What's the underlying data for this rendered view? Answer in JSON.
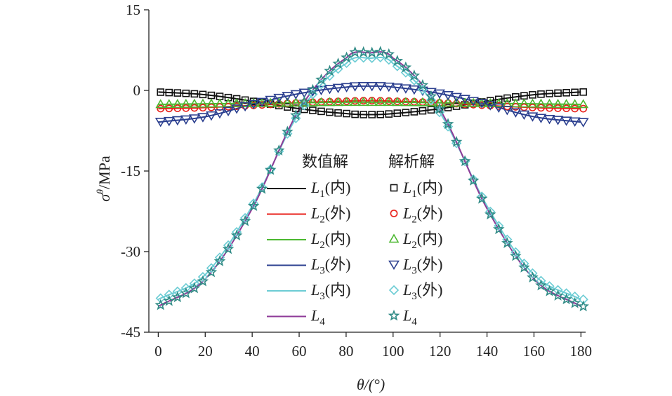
{
  "chart_data": {
    "type": "line",
    "title": "",
    "xlabel": "θ/(°)",
    "ylabel": "σ^θ/MPa",
    "xlim": [
      -4,
      182
    ],
    "ylim": [
      -45,
      15
    ],
    "xticks": [
      0,
      20,
      40,
      60,
      80,
      100,
      120,
      140,
      160,
      180
    ],
    "yticks": [
      15,
      0,
      -15,
      -30,
      -45
    ],
    "ytick_labels": [
      "15",
      "0",
      "-15",
      "-30",
      "-45"
    ],
    "grid": false,
    "legend_placement": "center",
    "legend_headers": {
      "numerical": "数值解",
      "analytical": "解析解"
    },
    "x": [
      0,
      20,
      40,
      60,
      80,
      90,
      100,
      120,
      140,
      160,
      180
    ],
    "series": [
      {
        "name": "L1(内)",
        "base": "L",
        "sub": "1",
        "suffix": "(内)",
        "color": "#111111",
        "marker": "square",
        "values": [
          -0.3,
          -0.8,
          -2.0,
          -3.4,
          -4.3,
          -4.5,
          -4.3,
          -3.4,
          -2.0,
          -0.8,
          -0.3
        ]
      },
      {
        "name": "L2(外)",
        "base": "L",
        "sub": "2",
        "suffix": "(外)",
        "color": "#e8211b",
        "marker": "circle",
        "values": [
          -3.4,
          -3.2,
          -2.8,
          -2.3,
          -2.0,
          -1.9,
          -2.0,
          -2.3,
          -2.8,
          -3.2,
          -3.4
        ]
      },
      {
        "name": "L2(内)",
        "base": "L",
        "sub": "2",
        "suffix": "(内)",
        "color": "#4cb830",
        "marker": "triangle-up",
        "values": [
          -2.6,
          -2.5,
          -2.4,
          -2.3,
          -2.2,
          -2.2,
          -2.2,
          -2.3,
          -2.4,
          -2.5,
          -2.6
        ]
      },
      {
        "name": "L3(外)",
        "base": "L",
        "sub": "3",
        "suffix": "(外)",
        "color": "#2b3f8f",
        "marker": "triangle-down",
        "values": [
          -5.9,
          -4.9,
          -2.6,
          -0.6,
          0.6,
          0.8,
          0.6,
          -0.6,
          -2.6,
          -4.9,
          -5.9
        ]
      },
      {
        "name": "L3(内)",
        "base": "L",
        "sub": "3",
        "suffix": "(内)",
        "color": "#6cccd4",
        "marker": "diamond",
        "legend_suffix_analytical": "(外)",
        "values": [
          -38.9,
          -34.3,
          -21.5,
          -4.2,
          5.0,
          6.0,
          5.0,
          -4.2,
          -21.5,
          -34.3,
          -38.9
        ]
      },
      {
        "name": "L4",
        "base": "L",
        "sub": "4",
        "suffix": "",
        "color": "#8e3a97",
        "marker": "star",
        "marker_color": "#2f8a85",
        "values": [
          -40.2,
          -35.1,
          -22.0,
          -3.6,
          6.0,
          7.0,
          6.0,
          -3.6,
          -22.0,
          -35.1,
          -40.2
        ]
      }
    ]
  }
}
